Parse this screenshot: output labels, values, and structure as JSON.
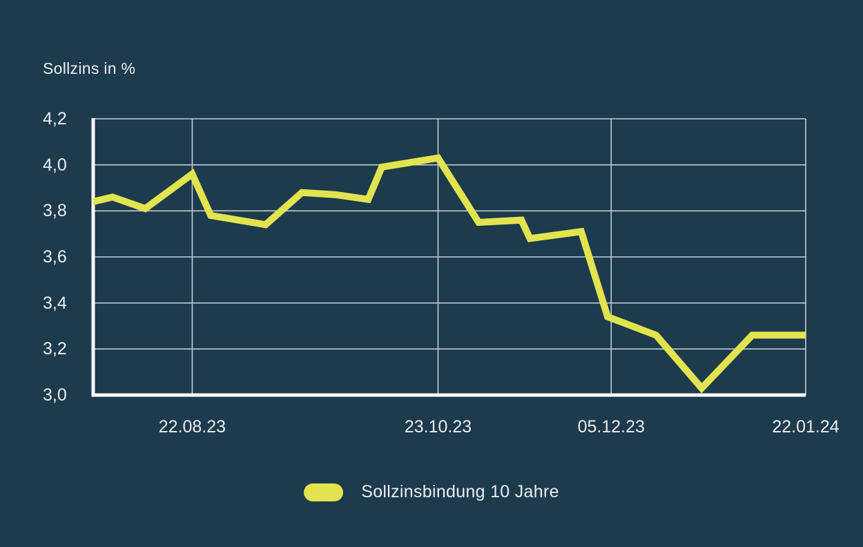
{
  "title": "Sollzins in %",
  "legend": {
    "label": "Sollzinsbindung 10 Jahre",
    "swatch_color": "#e2e44f"
  },
  "colors": {
    "background": "#1e3a4d",
    "line": "#e2e44f",
    "gridline": "#c3ced5",
    "axis": "#ffffff",
    "text": "#e9eef1"
  },
  "chart_data": {
    "type": "line",
    "title": "Sollzins in %",
    "ylabel": "Sollzins in %",
    "xlabel": "",
    "ylim": [
      3.0,
      4.2
    ],
    "grid": true,
    "legend_position": "bottom",
    "y_ticks": [
      {
        "value": 4.2,
        "label": "4,2"
      },
      {
        "value": 4.0,
        "label": "4,0"
      },
      {
        "value": 3.8,
        "label": "3,8"
      },
      {
        "value": 3.6,
        "label": "3,6"
      },
      {
        "value": 3.4,
        "label": "3,4"
      },
      {
        "value": 3.2,
        "label": "3,2"
      },
      {
        "value": 3.0,
        "label": "3,0"
      }
    ],
    "x_ticks": [
      {
        "label": "22.08.23",
        "x": 0.139
      },
      {
        "label": "23.10.23",
        "x": 0.484
      },
      {
        "label": "05.12.23",
        "x": 0.727
      },
      {
        "label": "22.01.24",
        "x": 1.0
      }
    ],
    "series": [
      {
        "name": "Sollzinsbindung 10 Jahre",
        "color": "#e2e44f",
        "points": [
          {
            "x": 0.0,
            "v": 3.84
          },
          {
            "x": 0.027,
            "v": 3.86
          },
          {
            "x": 0.073,
            "v": 3.81
          },
          {
            "x": 0.139,
            "v": 3.96
          },
          {
            "x": 0.165,
            "v": 3.78
          },
          {
            "x": 0.242,
            "v": 3.74
          },
          {
            "x": 0.293,
            "v": 3.88
          },
          {
            "x": 0.341,
            "v": 3.87
          },
          {
            "x": 0.386,
            "v": 3.85
          },
          {
            "x": 0.405,
            "v": 3.99
          },
          {
            "x": 0.484,
            "v": 4.03
          },
          {
            "x": 0.541,
            "v": 3.75
          },
          {
            "x": 0.601,
            "v": 3.76
          },
          {
            "x": 0.613,
            "v": 3.68
          },
          {
            "x": 0.685,
            "v": 3.71
          },
          {
            "x": 0.722,
            "v": 3.34
          },
          {
            "x": 0.79,
            "v": 3.26
          },
          {
            "x": 0.854,
            "v": 3.03
          },
          {
            "x": 0.925,
            "v": 3.26
          },
          {
            "x": 1.0,
            "v": 3.26
          }
        ]
      }
    ]
  }
}
